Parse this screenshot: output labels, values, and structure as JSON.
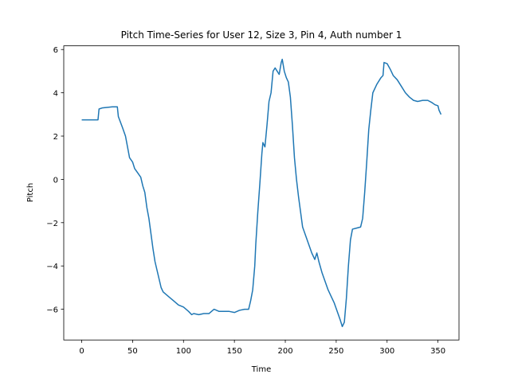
{
  "chart_data": {
    "type": "line",
    "title": "Pitch Time-Series for User 12, Size 3, Pin 4, Auth number 1",
    "x_label": "Time",
    "y_label": "Pitch",
    "xlim": [
      -17.65,
      370.65
    ],
    "ylim": [
      -7.42,
      6.17
    ],
    "xticks": [
      0,
      50,
      100,
      150,
      200,
      250,
      300,
      350
    ],
    "yticks": [
      {
        "value": -6,
        "label": "−6"
      },
      {
        "value": -4,
        "label": "−4"
      },
      {
        "value": -2,
        "label": "−2"
      },
      0,
      2,
      4,
      6
    ],
    "series": [
      {
        "color": "#1f77b4",
        "x": [
          0,
          16,
          17,
          20,
          30,
          35,
          36,
          40,
          43,
          45,
          47,
          50,
          52,
          55,
          58,
          60,
          62,
          64,
          66,
          68,
          70,
          72,
          74,
          76,
          78,
          80,
          85,
          90,
          95,
          100,
          105,
          108,
          110,
          115,
          120,
          125,
          130,
          135,
          140,
          145,
          150,
          155,
          160,
          164,
          166,
          168,
          170,
          171,
          173,
          175,
          177,
          178,
          180,
          182,
          184,
          186,
          188,
          190,
          192,
          194,
          196,
          197,
          199,
          201,
          203,
          205,
          207,
          209,
          211,
          213,
          215,
          217,
          220,
          223,
          226,
          229,
          231,
          233,
          236,
          239,
          242,
          245,
          248,
          251,
          254,
          256,
          258,
          260,
          262,
          264,
          266,
          270,
          274,
          276,
          278,
          280,
          282,
          284,
          286,
          290,
          294,
          296,
          297,
          300,
          303,
          306,
          310,
          314,
          318,
          322,
          326,
          330,
          335,
          340,
          344,
          347,
          350,
          351,
          353
        ],
        "values": [
          2.75,
          2.75,
          3.25,
          3.3,
          3.35,
          3.35,
          2.9,
          2.4,
          2.0,
          1.5,
          1.0,
          0.8,
          0.5,
          0.3,
          0.1,
          -0.3,
          -0.6,
          -1.3,
          -1.8,
          -2.5,
          -3.2,
          -3.8,
          -4.2,
          -4.6,
          -5.0,
          -5.2,
          -5.4,
          -5.6,
          -5.8,
          -5.9,
          -6.1,
          -6.25,
          -6.2,
          -6.25,
          -6.2,
          -6.2,
          -6.0,
          -6.1,
          -6.1,
          -6.1,
          -6.15,
          -6.05,
          -6.0,
          -6.0,
          -5.6,
          -5.1,
          -4.0,
          -3.0,
          -1.5,
          -0.2,
          1.2,
          1.7,
          1.5,
          2.5,
          3.6,
          4.0,
          5.0,
          5.15,
          5.0,
          4.85,
          5.4,
          5.55,
          5.0,
          4.7,
          4.5,
          3.8,
          2.5,
          1.0,
          0.0,
          -0.8,
          -1.5,
          -2.2,
          -2.6,
          -3.0,
          -3.4,
          -3.7,
          -3.4,
          -3.8,
          -4.3,
          -4.7,
          -5.1,
          -5.4,
          -5.7,
          -6.1,
          -6.5,
          -6.8,
          -6.6,
          -5.5,
          -4.0,
          -2.8,
          -2.3,
          -2.25,
          -2.2,
          -1.8,
          -0.6,
          0.8,
          2.3,
          3.2,
          4.0,
          4.4,
          4.7,
          4.8,
          5.4,
          5.35,
          5.1,
          4.8,
          4.6,
          4.3,
          4.0,
          3.8,
          3.65,
          3.6,
          3.65,
          3.65,
          3.55,
          3.45,
          3.4,
          3.2,
          3.0
        ]
      }
    ]
  }
}
